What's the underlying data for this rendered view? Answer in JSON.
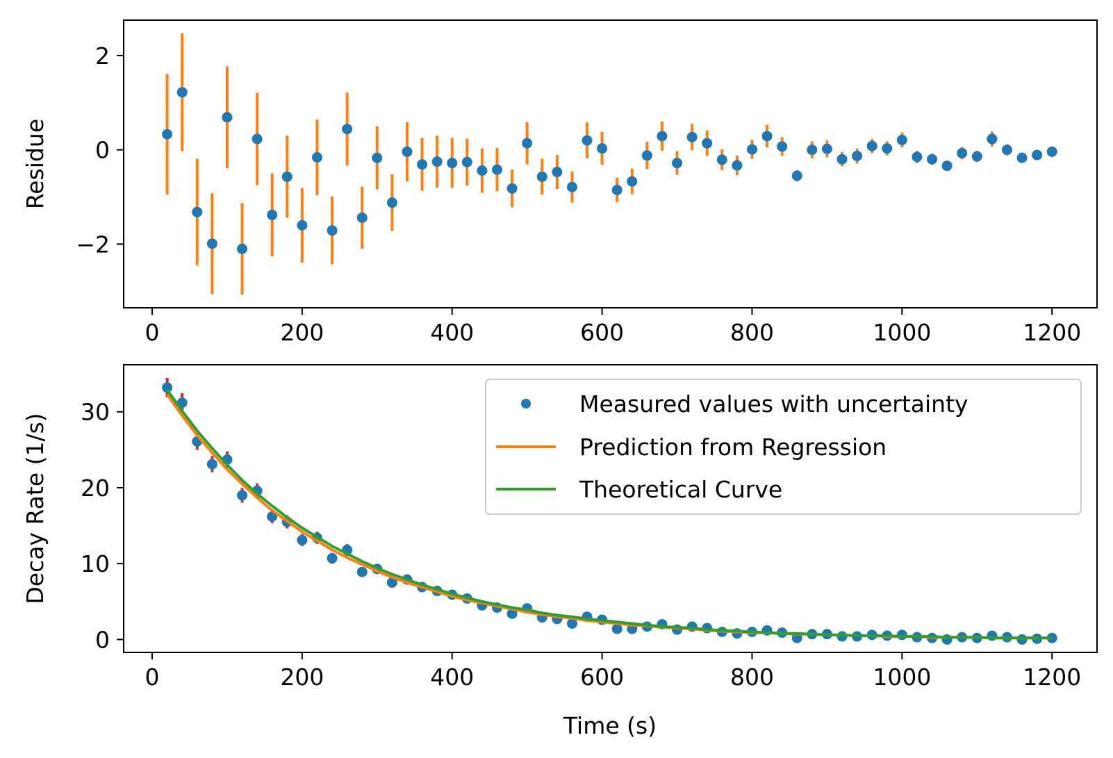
{
  "chart_data": [
    {
      "type": "scatter",
      "panel": "residuals",
      "title": "",
      "xlabel": "",
      "ylabel": "Residue",
      "xlim": [
        -38,
        1260
      ],
      "ylim": [
        -3.35,
        2.75
      ],
      "xticks": [
        0,
        200,
        400,
        600,
        800,
        1000,
        1200
      ],
      "xtick_labels": [
        "0",
        "200",
        "400",
        "600",
        "800",
        "1000",
        "1200"
      ],
      "yticks": [
        -2,
        0,
        2
      ],
      "ytick_labels": [
        "−2",
        "0",
        "2"
      ],
      "grid": false,
      "marker_color": "#1f77b4",
      "errorbar_color": "#ff7f0e",
      "x": [
        20,
        40,
        60,
        80,
        100,
        120,
        140,
        160,
        180,
        200,
        220,
        240,
        260,
        280,
        300,
        320,
        340,
        360,
        380,
        400,
        420,
        440,
        460,
        480,
        500,
        520,
        540,
        560,
        580,
        600,
        620,
        640,
        660,
        680,
        700,
        720,
        740,
        760,
        780,
        800,
        820,
        840,
        860,
        880,
        900,
        920,
        940,
        960,
        980,
        1000,
        1020,
        1040,
        1060,
        1080,
        1100,
        1120,
        1140,
        1160,
        1180,
        1200
      ],
      "y": [
        0.33,
        1.22,
        -1.32,
        -1.99,
        0.69,
        -2.1,
        0.23,
        -1.38,
        -0.57,
        -1.6,
        -0.16,
        -1.71,
        0.44,
        -1.44,
        -0.17,
        -1.12,
        -0.04,
        -0.31,
        -0.25,
        -0.28,
        -0.26,
        -0.44,
        -0.42,
        -0.82,
        0.14,
        -0.57,
        -0.47,
        -0.79,
        0.2,
        0.03,
        -0.85,
        -0.67,
        -0.12,
        0.29,
        -0.28,
        0.27,
        0.14,
        -0.21,
        -0.33,
        0.01,
        0.29,
        0.07,
        -0.55,
        0.0,
        0.02,
        -0.2,
        -0.13,
        0.08,
        0.03,
        0.21,
        -0.15,
        -0.2,
        -0.34,
        -0.07,
        -0.14,
        0.23,
        0.0,
        -0.17,
        -0.11,
        -0.04
      ],
      "yerr": [
        1.28,
        1.25,
        1.13,
        1.07,
        1.08,
        0.97,
        0.98,
        0.88,
        0.87,
        0.79,
        0.8,
        0.72,
        0.77,
        0.66,
        0.67,
        0.6,
        0.63,
        0.56,
        0.55,
        0.53,
        0.5,
        0.47,
        0.46,
        0.4,
        0.45,
        0.38,
        0.36,
        0.33,
        0.38,
        0.35,
        0.26,
        0.27,
        0.29,
        0.31,
        0.25,
        0.28,
        0.27,
        0.22,
        0.21,
        0.2,
        0.24,
        0.2,
        0.12,
        0.18,
        0.18,
        0.15,
        0.16,
        0.15,
        0.15,
        0.16,
        0.13,
        0.12,
        0.11,
        0.13,
        0.12,
        0.16,
        0.12,
        0.1,
        0.11,
        0.11
      ]
    },
    {
      "type": "line",
      "panel": "decay",
      "title": "",
      "xlabel": "Time (s)",
      "ylabel": "Decay Rate (1/s)",
      "xlim": [
        -38,
        1260
      ],
      "ylim": [
        -1.7,
        36.2
      ],
      "xticks": [
        0,
        200,
        400,
        600,
        800,
        1000,
        1200
      ],
      "xtick_labels": [
        "0",
        "200",
        "400",
        "600",
        "800",
        "1000",
        "1200"
      ],
      "yticks": [
        0,
        10,
        20,
        30
      ],
      "ytick_labels": [
        "0",
        "10",
        "20",
        "30"
      ],
      "grid": false,
      "legend_position": "top-right",
      "errorbar_color": "#d62728",
      "series": [
        {
          "name": "Measured values with uncertainty",
          "kind": "points",
          "color": "#1f77b4",
          "x": [
            20,
            40,
            60,
            80,
            100,
            120,
            140,
            160,
            180,
            200,
            220,
            240,
            260,
            280,
            300,
            320,
            340,
            360,
            380,
            400,
            420,
            440,
            460,
            480,
            500,
            520,
            540,
            560,
            580,
            600,
            620,
            640,
            660,
            680,
            700,
            720,
            740,
            760,
            780,
            800,
            820,
            840,
            860,
            880,
            900,
            920,
            940,
            960,
            980,
            1000,
            1020,
            1040,
            1060,
            1080,
            1100,
            1120,
            1140,
            1160,
            1180,
            1200
          ],
          "y": [
            33.2,
            31.2,
            26.1,
            23.1,
            23.7,
            19.0,
            19.6,
            16.2,
            15.5,
            13.1,
            13.4,
            10.7,
            11.8,
            8.9,
            9.3,
            7.5,
            7.9,
            6.9,
            6.4,
            5.9,
            5.4,
            4.5,
            4.2,
            3.4,
            4.1,
            2.9,
            2.7,
            2.1,
            3.0,
            2.6,
            1.4,
            1.4,
            1.7,
            2.0,
            1.3,
            1.7,
            1.5,
            1.0,
            0.8,
            1.0,
            1.2,
            0.9,
            0.2,
            0.7,
            0.7,
            0.4,
            0.4,
            0.6,
            0.5,
            0.6,
            0.3,
            0.2,
            0.0,
            0.3,
            0.2,
            0.5,
            0.3,
            0.0,
            0.1,
            0.2
          ],
          "yerr": [
            1.28,
            1.25,
            1.13,
            1.07,
            1.08,
            0.97,
            0.98,
            0.88,
            0.87,
            0.79,
            0.8,
            0.72,
            0.77,
            0.66,
            0.67,
            0.6,
            0.63,
            0.56,
            0.55,
            0.53,
            0.5,
            0.47,
            0.46,
            0.4,
            0.45,
            0.38,
            0.36,
            0.33,
            0.38,
            0.35,
            0.26,
            0.27,
            0.29,
            0.31,
            0.25,
            0.28,
            0.27,
            0.22,
            0.21,
            0.2,
            0.24,
            0.2,
            0.12,
            0.18,
            0.18,
            0.15,
            0.16,
            0.15,
            0.15,
            0.16,
            0.13,
            0.12,
            0.11,
            0.13,
            0.12,
            0.16,
            0.12,
            0.1,
            0.11,
            0.11
          ]
        },
        {
          "name": "Prediction from Regression",
          "kind": "line",
          "color": "#ff7f0e",
          "x": [
            20,
            40,
            60,
            80,
            100,
            120,
            140,
            160,
            180,
            200,
            220,
            240,
            260,
            280,
            300,
            320,
            340,
            360,
            380,
            400,
            420,
            440,
            460,
            480,
            500,
            520,
            540,
            560,
            580,
            600,
            620,
            640,
            660,
            680,
            700,
            720,
            740,
            760,
            780,
            800,
            820,
            840,
            860,
            880,
            900,
            920,
            940,
            960,
            980,
            1000,
            1020,
            1040,
            1060,
            1080,
            1100,
            1120,
            1140,
            1160,
            1180,
            1200
          ],
          "y": [
            32.3,
            29.5,
            26.9,
            24.6,
            22.4,
            20.5,
            18.7,
            17.0,
            15.6,
            14.2,
            13.0,
            11.8,
            10.8,
            9.9,
            9.0,
            8.2,
            7.5,
            6.9,
            6.3,
            5.7,
            5.2,
            4.8,
            4.4,
            4.0,
            3.6,
            3.3,
            3.0,
            2.8,
            2.5,
            2.3,
            2.1,
            1.9,
            1.8,
            1.6,
            1.5,
            1.4,
            1.2,
            1.1,
            1.0,
            0.9,
            0.9,
            0.8,
            0.7,
            0.7,
            0.6,
            0.6,
            0.5,
            0.5,
            0.4,
            0.4,
            0.4,
            0.3,
            0.3,
            0.3,
            0.3,
            0.2,
            0.2,
            0.2,
            0.2,
            0.2
          ]
        },
        {
          "name": "Theoretical Curve",
          "kind": "line",
          "color": "#2ca02c",
          "x": [
            20,
            40,
            60,
            80,
            100,
            120,
            140,
            160,
            180,
            200,
            220,
            240,
            260,
            280,
            300,
            320,
            340,
            360,
            380,
            400,
            420,
            440,
            460,
            480,
            500,
            520,
            540,
            560,
            580,
            600,
            620,
            640,
            660,
            680,
            700,
            720,
            740,
            760,
            780,
            800,
            820,
            840,
            860,
            880,
            900,
            920,
            940,
            960,
            980,
            1000,
            1020,
            1040,
            1060,
            1080,
            1100,
            1120,
            1140,
            1160,
            1180,
            1200
          ],
          "y": [
            32.9,
            30.1,
            27.5,
            25.2,
            23.0,
            21.0,
            19.2,
            17.6,
            16.1,
            14.7,
            13.5,
            12.3,
            11.3,
            10.3,
            9.4,
            8.6,
            7.9,
            7.2,
            6.6,
            6.0,
            5.5,
            5.0,
            4.6,
            4.2,
            3.9,
            3.5,
            3.2,
            3.0,
            2.7,
            2.5,
            2.3,
            2.1,
            1.9,
            1.7,
            1.6,
            1.5,
            1.3,
            1.2,
            1.1,
            1.0,
            0.9,
            0.8,
            0.8,
            0.7,
            0.6,
            0.6,
            0.5,
            0.5,
            0.5,
            0.4,
            0.4,
            0.4,
            0.3,
            0.3,
            0.3,
            0.2,
            0.2,
            0.2,
            0.2,
            0.2
          ]
        }
      ]
    }
  ]
}
